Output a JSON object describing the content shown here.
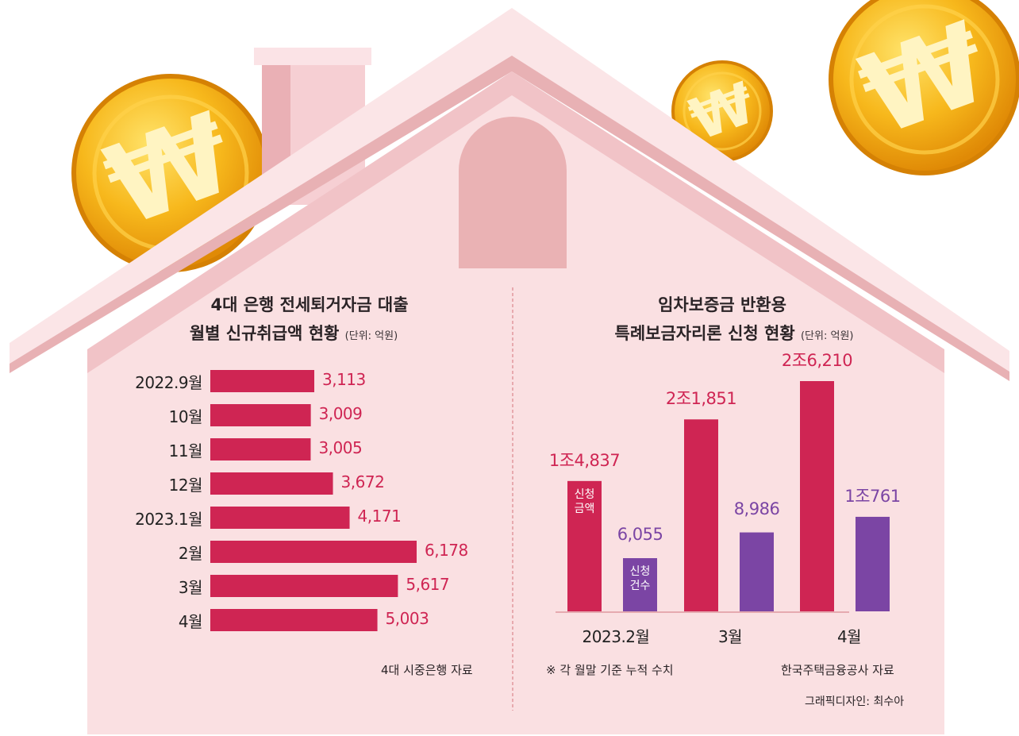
{
  "left_chart": {
    "title_line1": "4대 은행 전세퇴거자금 대출",
    "title_line2": "월별 신규취급액 현황",
    "unit": "(단위: 억원)",
    "source": "4대 시중은행 자료"
  },
  "right_chart": {
    "title_line1": "임차보증금 반환용",
    "title_line2": "특례보금자리론 신청 현황",
    "unit": "(단위: 억원)",
    "note": "※ 각 월말 기준 누적 수치",
    "source": "한국주택금융공사 자료",
    "inner_label_amount": "신청 금액",
    "inner_label_count": "신청 건수"
  },
  "credit": "그래픽디자인: 최수아",
  "colors": {
    "bar_red": "#cf2553",
    "bar_purple": "#7b45a4",
    "house": "#fae0e2",
    "roof": "#e9b4b6"
  },
  "chart_data": [
    {
      "type": "bar",
      "orientation": "horizontal",
      "title": "4대 은행 전세퇴거자금 대출 월별 신규취급액 현황",
      "unit": "억원",
      "categories": [
        "2022.9월",
        "10월",
        "11월",
        "12월",
        "2023.1월",
        "2월",
        "3월",
        "4월"
      ],
      "values": [
        3113,
        3009,
        3005,
        3672,
        4171,
        6178,
        5617,
        5003
      ],
      "value_labels": [
        "3,113",
        "3,009",
        "3,005",
        "3,672",
        "4,171",
        "6,178",
        "5,617",
        "5,003"
      ],
      "xlim": [
        0,
        7000
      ]
    },
    {
      "type": "bar",
      "orientation": "vertical",
      "title": "임차보증금 반환용 특례보금자리론 신청 현황",
      "unit": "억원",
      "categories": [
        "2023.2월",
        "3월",
        "4월"
      ],
      "series": [
        {
          "name": "신청 금액",
          "values": [
            14837,
            21851,
            26210
          ],
          "labels": [
            "1조4,837",
            "2조1,851",
            "2조6,210"
          ]
        },
        {
          "name": "신청 건수",
          "values": [
            6055,
            8986,
            10761
          ],
          "labels": [
            "6,055",
            "8,986",
            "1조761"
          ]
        }
      ],
      "ylim": [
        0,
        30000
      ]
    }
  ]
}
